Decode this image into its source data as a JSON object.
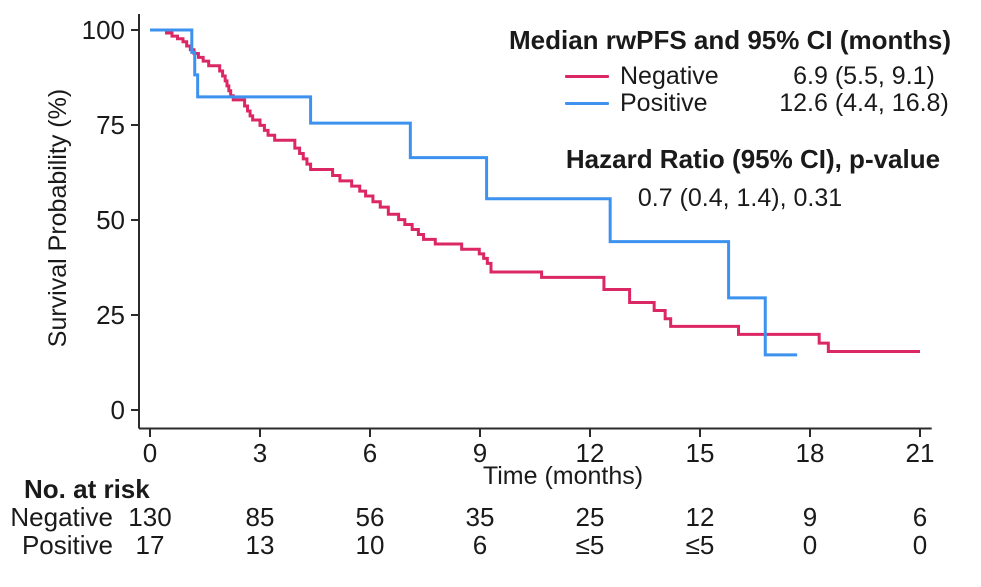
{
  "figure": {
    "y_axis_label": "Survival Probability (%)",
    "x_axis_label": "Time (months)"
  },
  "legend": {
    "title": "Median rwPFS and 95% CI (months)",
    "entries": [
      {
        "label": "Negative",
        "value": "6.9 (5.5, 9.1)",
        "color": "#DC2765"
      },
      {
        "label": "Positive",
        "value": "12.6 (4.4, 16.8)",
        "color": "#3C92EE"
      }
    ],
    "hazard_title": "Hazard Ratio (95% CI), p-value",
    "hazard_value": "0.7 (0.4, 1.4), 0.31"
  },
  "chart_data": {
    "type": "line",
    "subtype": "kaplan_meier_step",
    "title": "",
    "xlabel": "Time (months)",
    "ylabel": "Survival Probability (%)",
    "xlim": [
      0,
      21
    ],
    "ylim": [
      0,
      100
    ],
    "xticks": [
      0,
      3,
      6,
      9,
      12,
      15,
      18,
      21
    ],
    "yticks": [
      100,
      75,
      50,
      25,
      0
    ],
    "grid": false,
    "legend_position": "top-right",
    "axis_color": "#2b2b2b",
    "series": [
      {
        "name": "Negative",
        "color": "#DC2765",
        "median_ci_months": "6.9 (5.5, 9.1)",
        "end_time": 21.0,
        "steps": [
          [
            0,
            100
          ],
          [
            0.45,
            99.2
          ],
          [
            0.6,
            98.4
          ],
          [
            0.75,
            97.7
          ],
          [
            0.9,
            96.9
          ],
          [
            1.0,
            95.8
          ],
          [
            1.1,
            94.8
          ],
          [
            1.2,
            93.8
          ],
          [
            1.32,
            92.8
          ],
          [
            1.45,
            91.8
          ],
          [
            1.6,
            90.6
          ],
          [
            1.9,
            89.2
          ],
          [
            1.98,
            87.9
          ],
          [
            2.05,
            86.6
          ],
          [
            2.1,
            85.3
          ],
          [
            2.15,
            84.0
          ],
          [
            2.2,
            82.7
          ],
          [
            2.27,
            81.6
          ],
          [
            2.58,
            80.0
          ],
          [
            2.66,
            78.7
          ],
          [
            2.73,
            77.4
          ],
          [
            2.8,
            76.3
          ],
          [
            3.0,
            74.9
          ],
          [
            3.12,
            73.6
          ],
          [
            3.22,
            72.3
          ],
          [
            3.4,
            71.0
          ],
          [
            3.95,
            68.9
          ],
          [
            4.08,
            67.5
          ],
          [
            4.18,
            66.1
          ],
          [
            4.28,
            64.7
          ],
          [
            4.38,
            63.3
          ],
          [
            4.98,
            61.7
          ],
          [
            5.18,
            60.3
          ],
          [
            5.5,
            58.9
          ],
          [
            5.72,
            57.6
          ],
          [
            5.88,
            56.3
          ],
          [
            6.08,
            54.8
          ],
          [
            6.28,
            53.4
          ],
          [
            6.5,
            51.5
          ],
          [
            6.78,
            50.1
          ],
          [
            6.95,
            48.8
          ],
          [
            7.15,
            47.5
          ],
          [
            7.32,
            46.2
          ],
          [
            7.46,
            44.9
          ],
          [
            7.78,
            43.7
          ],
          [
            8.5,
            42.3
          ],
          [
            8.98,
            41.1
          ],
          [
            9.1,
            39.9
          ],
          [
            9.2,
            38.6
          ],
          [
            9.3,
            36.3
          ],
          [
            10.68,
            34.9
          ],
          [
            12.38,
            31.7
          ],
          [
            13.08,
            28.3
          ],
          [
            13.75,
            26.2
          ],
          [
            14.05,
            24.0
          ],
          [
            14.2,
            22.0
          ],
          [
            16.05,
            19.9
          ],
          [
            18.25,
            17.6
          ],
          [
            18.5,
            15.4
          ]
        ]
      },
      {
        "name": "Positive",
        "color": "#3C92EE",
        "median_ci_months": "12.6 (4.4, 16.8)",
        "end_time": 17.65,
        "steps": [
          [
            0,
            100
          ],
          [
            1.14,
            94.1
          ],
          [
            1.22,
            88.2
          ],
          [
            1.3,
            82.4
          ],
          [
            4.38,
            75.5
          ],
          [
            7.1,
            66.4
          ],
          [
            9.18,
            55.6
          ],
          [
            12.55,
            44.3
          ],
          [
            15.78,
            29.5
          ],
          [
            16.78,
            14.5
          ]
        ]
      }
    ],
    "hazard_ratio_95ci_pvalue": "0.7 (0.4, 1.4), 0.31",
    "at_risk": {
      "title": "No. at risk",
      "times": [
        0,
        3,
        6,
        9,
        12,
        15,
        18,
        21
      ],
      "rows": [
        {
          "label": "Negative",
          "counts": [
            "130",
            "85",
            "56",
            "35",
            "25",
            "12",
            "9",
            "6"
          ]
        },
        {
          "label": "Positive",
          "counts": [
            "17",
            "13",
            "10",
            "6",
            "≤5",
            "≤5",
            "0",
            "0"
          ]
        }
      ]
    }
  }
}
